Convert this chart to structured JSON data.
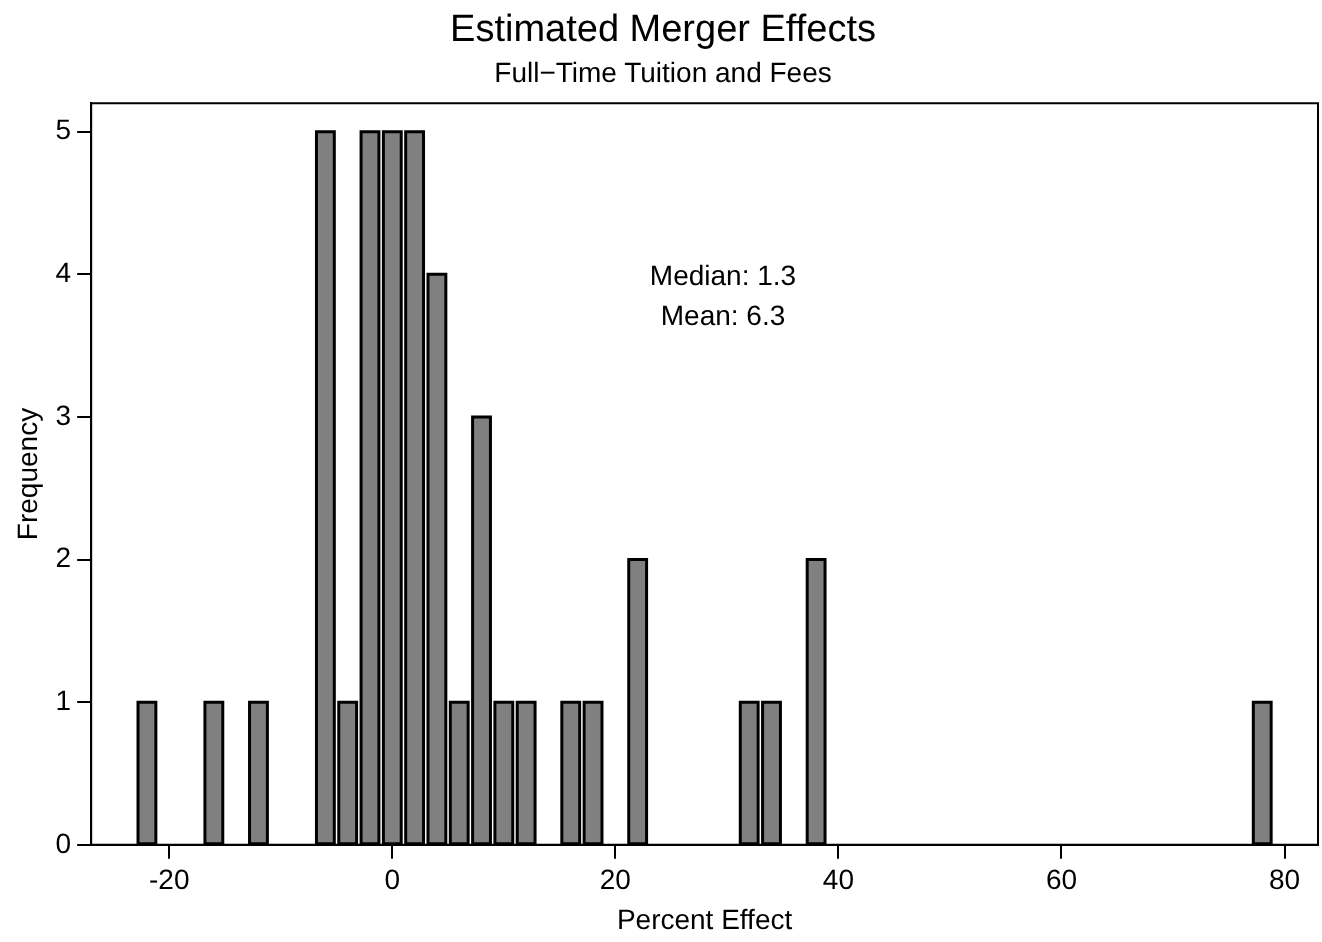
{
  "chart_data": {
    "type": "histogram",
    "title": "Estimated Merger Effects",
    "subtitle": "Full−Time Tuition and Fees",
    "xlabel": "Percent Effect",
    "ylabel": "Frequency",
    "bins": [
      -23,
      -21,
      -19,
      -17,
      -15,
      -13,
      -11,
      -9,
      -7,
      -5,
      -3,
      -1,
      1,
      3,
      5,
      7,
      9,
      11,
      13,
      15,
      17,
      19,
      21,
      23,
      25,
      27,
      29,
      31,
      33,
      35,
      37,
      39,
      41,
      43,
      45,
      47,
      49,
      51,
      53,
      55,
      57,
      59,
      61,
      63,
      65,
      67,
      69,
      71,
      73,
      75,
      77,
      79
    ],
    "values": [
      1,
      0,
      0,
      1,
      0,
      1,
      0,
      0,
      5,
      1,
      5,
      5,
      5,
      4,
      1,
      3,
      1,
      1,
      0,
      1,
      1,
      0,
      2,
      0,
      0,
      0,
      0,
      1,
      1,
      0,
      2,
      0,
      0,
      0,
      0,
      0,
      0,
      0,
      0,
      0,
      0,
      0,
      0,
      0,
      0,
      0,
      0,
      0,
      0,
      0,
      1
    ],
    "color": "#808080",
    "xlim": [
      -27,
      83
    ],
    "xticks": [
      -20,
      0,
      20,
      40,
      60,
      80
    ],
    "ylim": [
      0,
      5.2
    ],
    "yticks": [
      0,
      1,
      2,
      3,
      4,
      5
    ],
    "grid": false,
    "legend": false,
    "annotations": [
      "Median: 1.3",
      "Mean: 6.3"
    ]
  }
}
